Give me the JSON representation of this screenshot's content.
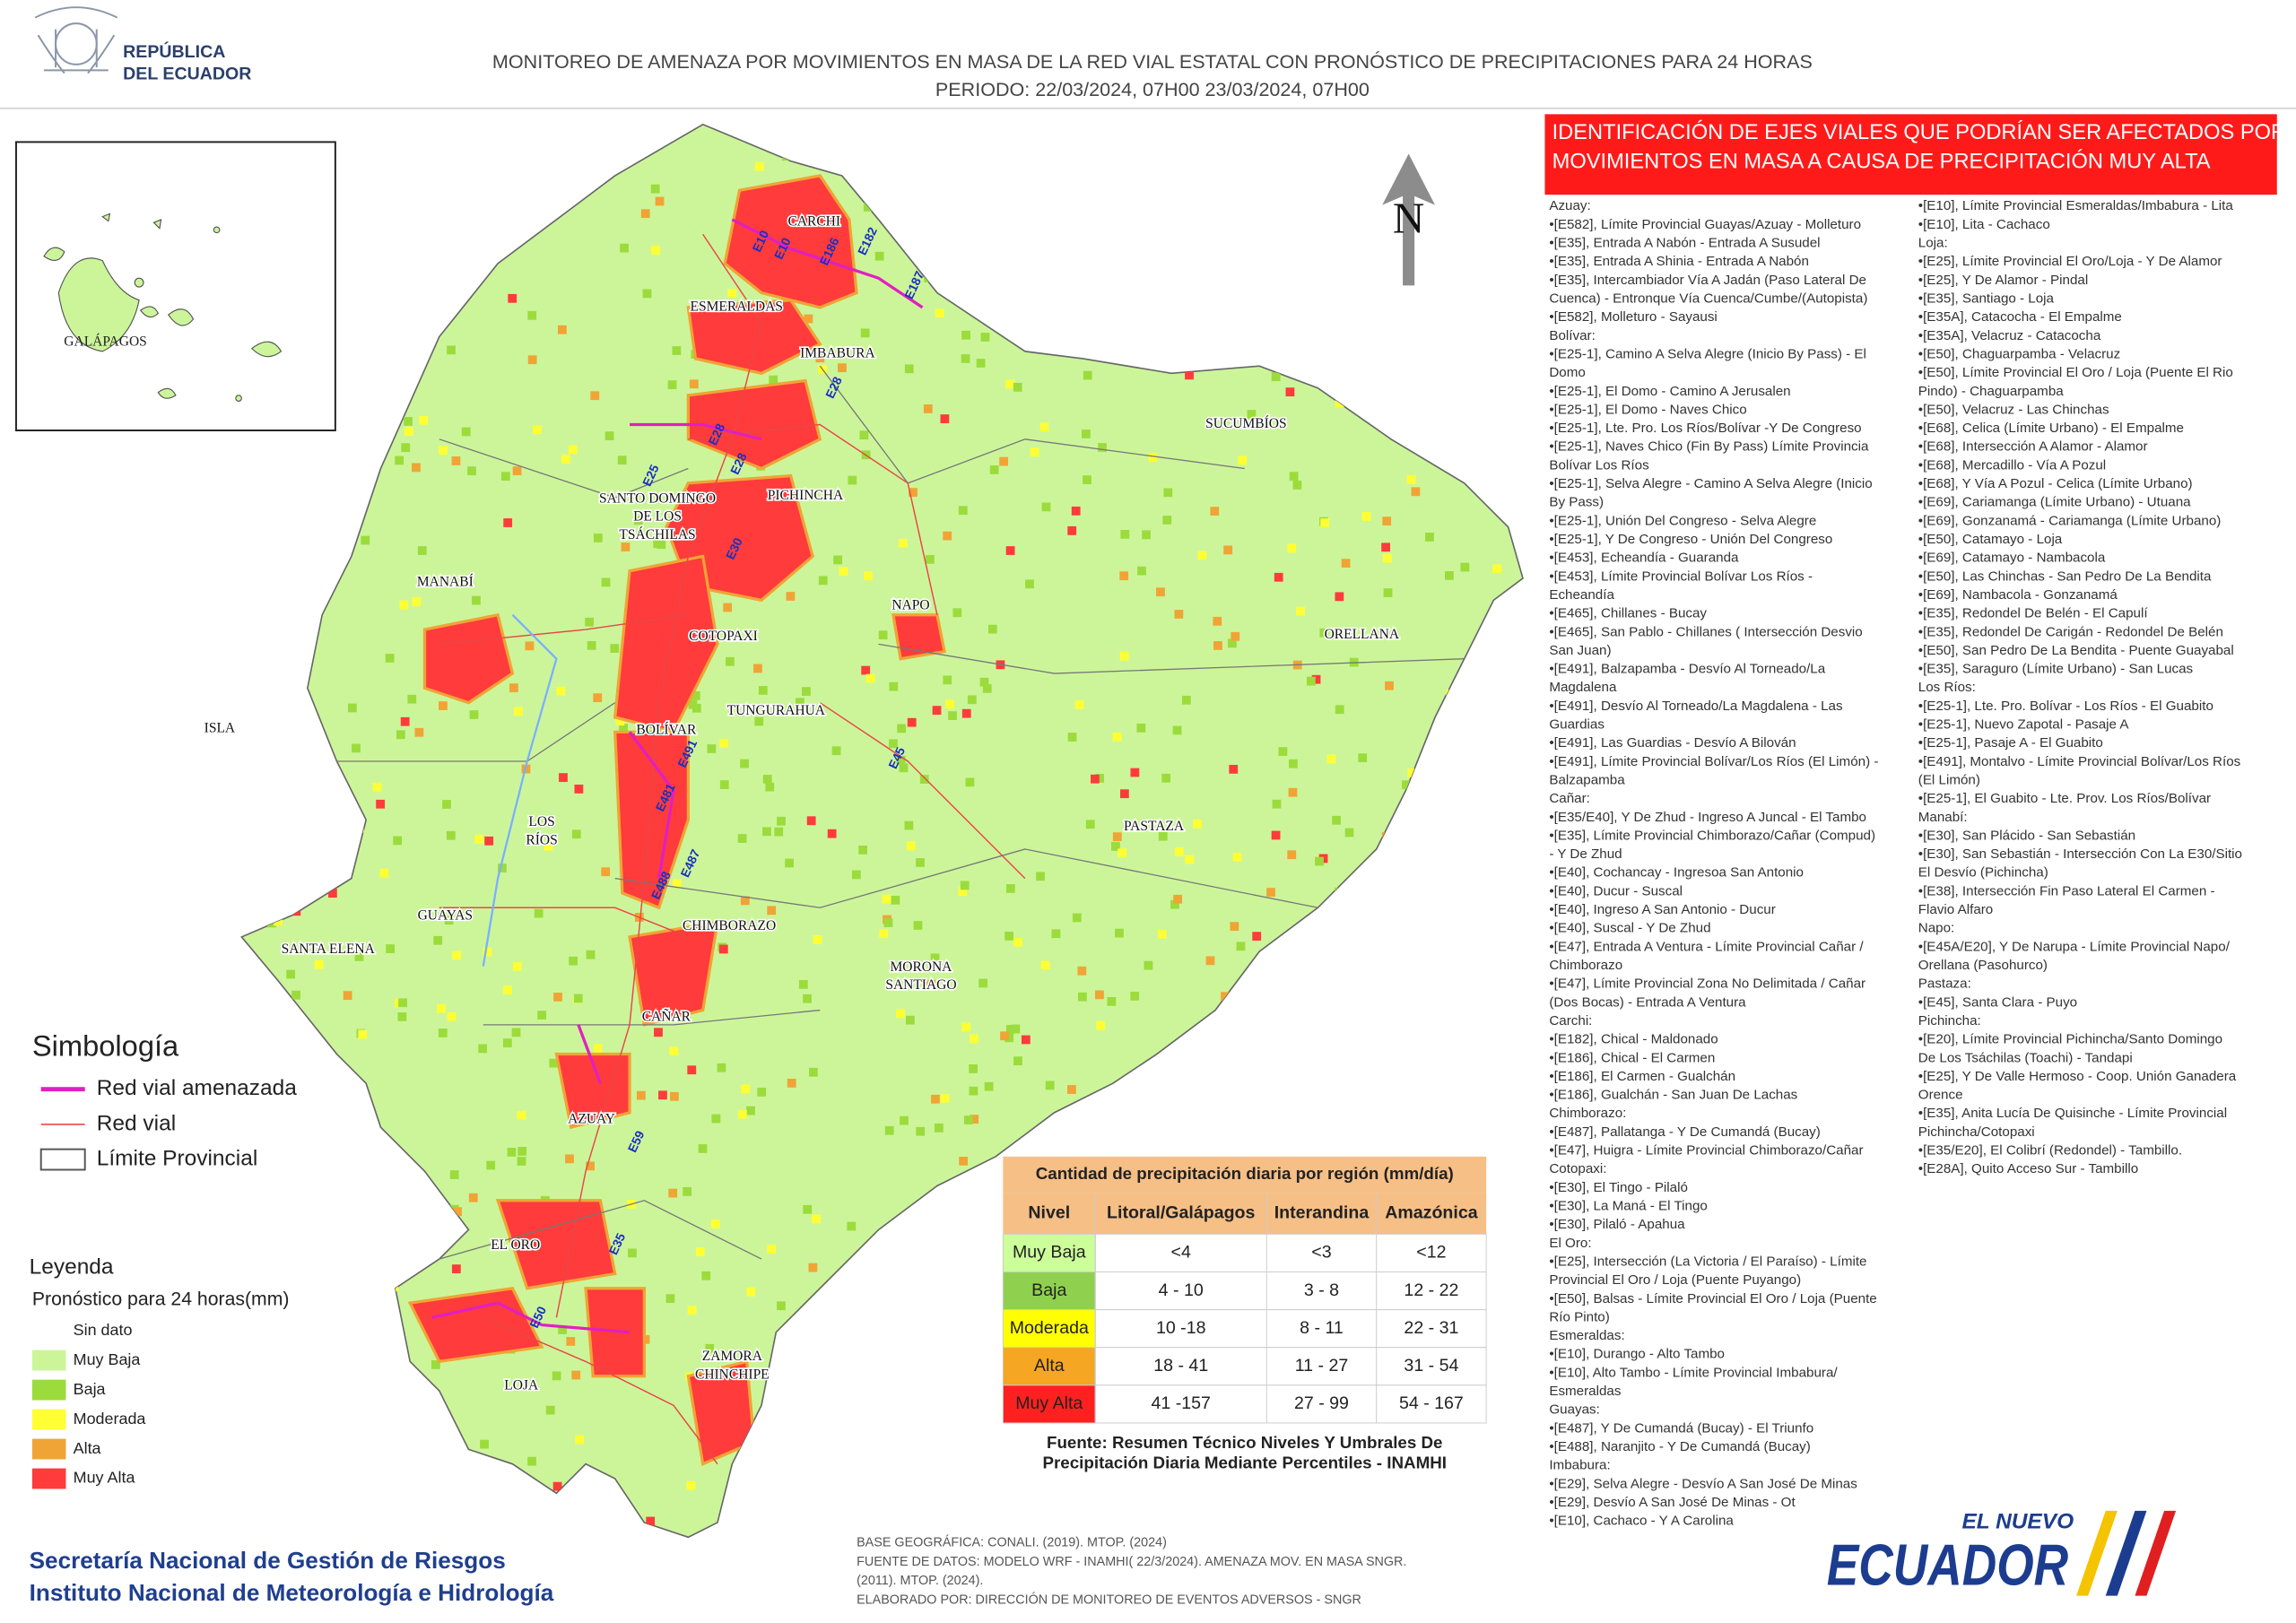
{
  "header": {
    "logo": [
      "REPÚBLICA",
      "DEL ECUADOR"
    ],
    "title": "MONITOREO DE AMENAZA POR MOVIMIENTOS EN MASA DE LA RED VIAL  ESTATAL  CON PRONÓSTICO  DE  PRECIPITACIONES PARA 24 HORAS",
    "period": "PERIODO: 22/03/2024, 07H00 23/03/2024, 07H00"
  },
  "inset": {
    "label": "GALÁPAGOS"
  },
  "map": {
    "north": "N",
    "provinces": [
      [
        "CARCHI"
      ],
      [
        "ESMERALDAS"
      ],
      [
        "IMBABURA"
      ],
      [
        "SUCUMBÍOS"
      ],
      [
        "SANTO DOMINGO",
        "DE LOS",
        "TSÁCHILAS"
      ],
      [
        "PICHINCHA"
      ],
      [
        "MANABÍ"
      ],
      [
        "NAPO"
      ],
      [
        "ORELLANA"
      ],
      [
        "COTOPAXI"
      ],
      [
        "ISLA"
      ],
      [
        "BOLÍVAR"
      ],
      [
        "TUNGURAHUA"
      ],
      [
        "LOS",
        "RÍOS"
      ],
      [
        "PASTAZA"
      ],
      [
        "GUAYAS"
      ],
      [
        "SANTA ELENA"
      ],
      [
        "CHIMBORAZO"
      ],
      [
        "MORONA",
        "SANTIAGO"
      ],
      [
        "CAÑAR"
      ],
      [
        "AZUAY"
      ],
      [
        "EL ORO"
      ],
      [
        "ZAMORA",
        "CHINCHIPE"
      ],
      [
        "LOJA"
      ]
    ],
    "roads": [
      "E10",
      "E10",
      "E186",
      "E182",
      "E187",
      "E28",
      "E28",
      "E28",
      "E25",
      "E30",
      "E45",
      "E491",
      "E481",
      "E487",
      "E488",
      "E59",
      "E35",
      "E50"
    ]
  },
  "symbology": {
    "title": "Simbología",
    "items": [
      "Red vial amenazada",
      "Red vial",
      "Límite Provincial"
    ]
  },
  "legend": {
    "title": "Leyenda",
    "subtitle": "Pronóstico para 24 horas(mm)",
    "items": [
      {
        "name": "Sin dato",
        "color": "#ffffff"
      },
      {
        "name": "Muy Baja",
        "color": "#ccf59a"
      },
      {
        "name": "Baja",
        "color": "#9bdc3c"
      },
      {
        "name": "Moderada",
        "color": "#ffff33"
      },
      {
        "name": "Alta",
        "color": "#f0a436"
      },
      {
        "name": "Muy Alta",
        "color": "#ff3b3b"
      }
    ]
  },
  "table": {
    "title": "Cantidad de precipitación diaria por región (mm/día)",
    "header": [
      "Nivel",
      "Litoral/Galápagos",
      "Interandina",
      "Amazónica"
    ],
    "rows": [
      [
        "Muy Baja",
        "<4",
        "<3",
        "<12"
      ],
      [
        "Baja",
        "4 - 10",
        "3 - 8",
        "12 - 22"
      ],
      [
        "Moderada",
        "10 -18",
        "8 - 11",
        "22 - 31"
      ],
      [
        "Alta",
        "18 - 41",
        "11 - 27",
        "31 - 54"
      ],
      [
        "Muy Alta",
        "41 -157",
        "27 - 99",
        "54 - 167"
      ]
    ],
    "row_colors": [
      "#ccff99",
      "#8fd14f",
      "#ffff00",
      "#f5a623",
      "#ff2020"
    ],
    "source": [
      "Fuente: Resumen Técnico Niveles Y Umbrales De",
      "Precipitación Diaria Mediante Percentiles - INAMHI"
    ]
  },
  "panel": {
    "heading": [
      "IDENTIFICACIÓN DE EJES VIALES QUE PODRÍAN SER AFECTADOS POR",
      "MOVIMIENTOS EN MASA A CAUSA DE PRECIPITACIÓN MUY ALTA"
    ],
    "columns": [
      [
        "Azuay:",
        "•[E582], Límite Provincial Guayas/Azuay - Molleturo",
        "•[E35], Entrada A Nabón - Entrada A Susudel",
        "•[E35], Entrada A Shinia - Entrada A Nabón",
        "•[E35], Intercambiador Vía A Jadán (Paso Lateral De",
        "Cuenca) - Entronque Vía Cuenca/Cumbe/(Autopista)",
        "•[E582], Molleturo - Sayausi",
        "Bolívar:",
        "•[E25-1], Camino A Selva Alegre (Inicio By Pass) -  El",
        "Domo",
        "•[E25-1], El Domo - Camino A Jerusalen",
        "•[E25-1], El Domo - Naves Chico",
        "•[E25-1], Lte. Pro. Los Ríos/Bolívar -Y De Congreso",
        "•[E25-1], Naves Chico (Fin By Pass) Límite Provincia",
        "Bolívar Los Ríos",
        "•[E25-1], Selva Alegre - Camino A Selva Alegre (Inicio",
        "By Pass)",
        "•[E25-1], Unión Del Congreso - Selva  Alegre",
        "•[E25-1], Y De Congreso - Unión Del Congreso",
        "•[E453], Echeandía - Guaranda",
        "•[E453], Límite Provincial Bolívar Los Ríos -",
        "Echeandía",
        "•[E465], Chillanes - Bucay",
        "•[E465], San Pablo - Chillanes ( Intersección Desvio",
        "San Juan)",
        "•[E491], Balzapamba - Desvío Al Torneado/La",
        "Magdalena",
        "•[E491], Desvío Al Torneado/La Magdalena - Las",
        "Guardias",
        "•[E491], Las Guardias - Desvío A Bilován",
        "•[E491], Límite Provincial Bolívar/Los Ríos (El Limón) -",
        "Balzapamba",
        "Cañar:",
        "•[E35/E40], Y De Zhud - Ingreso A Juncal - El Tambo",
        "•[E35], Límite Provincial Chimborazo/Cañar (Compud)",
        "- Y De Zhud",
        "•[E40], Cochancay - Ingresoa San Antonio",
        "•[E40], Ducur - Suscal",
        "•[E40], Ingreso A San Antonio - Ducur",
        "•[E40], Suscal - Y De Zhud",
        "•[E47], Entrada A Ventura -  Límite Provincial Cañar /",
        "Chimborazo",
        "•[E47], Límite Provincial Zona No Delimitada / Cañar",
        "(Dos Bocas) - Entrada  A Ventura",
        "Carchi:",
        "•[E182], Chical - Maldonado",
        "•[E186], Chical - El Carmen",
        "•[E186], El Carmen - Gualchán",
        "•[E186], Gualchán - San Juan De Lachas",
        "Chimborazo:",
        "•[E487], Pallatanga - Y De Cumandá (Bucay)",
        "•[E47], Huigra - Límite Provincial Chimborazo/Cañar",
        "Cotopaxi:",
        "•[E30], El Tingo - Pilaló",
        "•[E30], La Maná - El Tingo",
        "•[E30], Pilaló - Apahua",
        "El Oro:",
        "•[E25], Intersección (La Victoria / El Paraíso) - Límite",
        "Provincial El Oro / Loja (Puente Puyango)",
        "•[E50], Balsas - Límite Provincial El Oro / Loja (Puente",
        "Río Pinto)",
        "Esmeraldas:",
        "•[E10], Durango - Alto Tambo",
        "•[E10], Alto Tambo - Límite Provincial Imbabura/",
        "Esmeraldas",
        "Guayas:",
        "•[E487], Y De Cumandá (Bucay) - El Triunfo",
        "•[E488], Naranjito - Y De Cumandá (Bucay)",
        "Imbabura:",
        "•[E29], Selva  Alegre - Desvío  A San José De Minas",
        "•[E29], Desvío  A San José De Minas - Ot",
        "•[E10], Cachaco - Y A Carolina"
      ],
      [
        "•[E10], Límite Provincial Esmeraldas/Imbabura - Lita",
        "•[E10], Lita - Cachaco",
        "Loja:",
        "•[E25], Límite Provincial El Oro/Loja - Y De Alamor",
        "•[E25], Y De Alamor - Pindal",
        "•[E35], Santiago - Loja",
        "•[E35A], Catacocha - El Empalme",
        "•[E35A], Velacruz - Catacocha",
        "•[E50], Chaguarpamba - Velacruz",
        "•[E50], Límite Provincial El Oro / Loja (Puente El Rio",
        "Pindo) - Chaguarpamba",
        "•[E50], Velacruz - Las Chinchas",
        "•[E68], Celica (Límite Urbano) - El Empalme",
        "•[E68], Intersección A  Alamor - Alamor",
        "•[E68], Mercadillo - Vía  A Pozul",
        "•[E68], Y Vía A Pozul - Celica (Límite Urbano)",
        "•[E69], Cariamanga (Límite Urbano) - Utuana",
        "•[E69], Gonzanamá - Cariamanga (Límite Urbano)",
        "•[E50], Catamayo - Loja",
        "•[E69], Catamayo - Nambacola",
        "•[E50], Las Chinchas - San Pedro De La Bendita",
        "•[E69], Nambacola - Gonzanamá",
        "•[E35], Redondel De Belén - El Capulí",
        "•[E35], Redondel De Carigán - Redondel De Belén",
        "•[E50], San Pedro De La Bendita - Puente Guayabal",
        "•[E35], Saraguro (Límite Urbano) - San Lucas",
        "Los Ríos:",
        "•[E25-1], Lte. Pro. Bolívar - Los Ríos - El Guabito",
        "•[E25-1], Nuevo Zapotal - Pasaje A",
        "•[E25-1], Pasaje A - El Guabito",
        "•[E491], Montalvo - Límite Provincial Bolívar/Los Ríos",
        "(El Limón)",
        "•[E25-1], El Guabito - Lte. Prov. Los Ríos/Bolívar",
        "Manabí:",
        "•[E30], San Plácido - San Sebastián",
        "•[E30], San Sebastián - Intersección Con La E30/Sitio",
        "El Desvío (Pichincha)",
        "•[E38], Intersección Fin Paso Lateral El Carmen -",
        "Flavio Alfaro",
        "Napo:",
        "•[E45A/E20], Y De Narupa - Límite Provincial Napo/",
        "Orellana (Pasohurco)",
        "Pastaza:",
        "•[E45], Santa Clara - Puyo",
        "Pichincha:",
        "•[E20], Límite Provincial Pichincha/Santo Domingo",
        "De Los Tsáchilas (Toachi) - Tandapi",
        "•[E25], Y De Valle Hermoso - Coop. Unión Ganadera",
        "Orence",
        "•[E35], Anita Lucía De Quisinche - Límite Provincial",
        "Pichincha/Cotopaxi",
        "•[E35/E20], El Colibrí (Redondel) - Tambillo.",
        "•[E28A], Quito Acceso Sur - Tambillo"
      ]
    ]
  },
  "footer": {
    "institutions": [
      "Secretaría Nacional de Gestión de Riesgos",
      "Instituto Nacional de Meteorología e Hidrología"
    ],
    "sources": [
      "BASE GEOGRÁFICA: CONALI. (2019). MTOP. (2024)",
      "FUENTE DE DATOS: MODELO WRF - INAMHI( 22/3/2024).  AMENAZA MOV. EN MASA SNGR.",
      "(2011). MTOP. (2024).",
      "ELABORADO POR: DIRECCIÓN DE MONITOREO DE EVENTOS ADVERSOS - SNGR"
    ],
    "brand": [
      "EL NUEVO",
      "ECUADOR"
    ]
  }
}
